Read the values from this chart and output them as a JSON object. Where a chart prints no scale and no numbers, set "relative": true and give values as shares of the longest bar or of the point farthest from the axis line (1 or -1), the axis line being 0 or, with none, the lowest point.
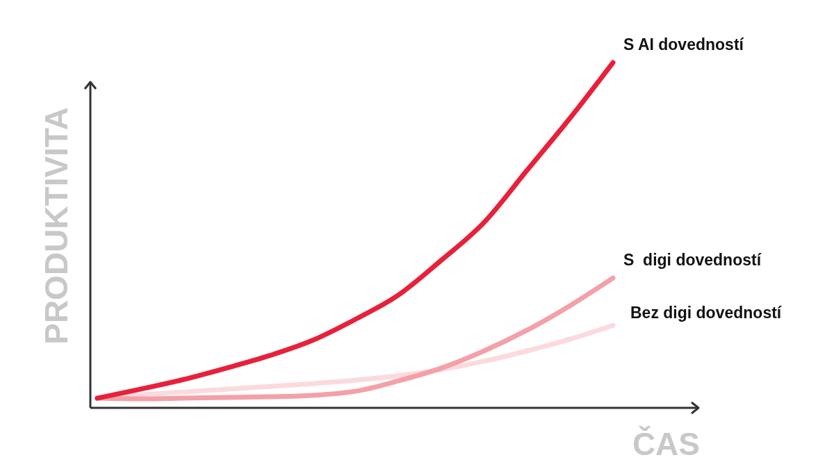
{
  "chart_data": {
    "type": "line",
    "relative": true,
    "xlabel": "ČAS",
    "ylabel": "PRODUKTIVITA",
    "marker": "none",
    "line_style": "solid",
    "categories": [
      null,
      null,
      null,
      null,
      null,
      null,
      null,
      null,
      null,
      null,
      null,
      null,
      null
    ],
    "series": [
      {
        "name": "S AI dovedností",
        "color": "#e8203a",
        "values": [
          0.028,
          0.054,
          0.082,
          0.115,
          0.151,
          0.195,
          0.256,
          0.326,
          0.427,
          0.537,
          0.688,
          0.839,
          1
        ]
      },
      {
        "name": "S  digi dovedností",
        "color": "#f4a0a8",
        "values": [
          0.028,
          0.026,
          0.028,
          0.03,
          0.032,
          0.036,
          0.048,
          0.078,
          0.115,
          0.165,
          0.225,
          0.296,
          0.376
        ]
      },
      {
        "name": "Bez digi dovedností",
        "color": "#fbdadd",
        "values": [
          0.028,
          0.038,
          0.046,
          0.054,
          0.062,
          0.07,
          0.08,
          0.093,
          0.111,
          0.135,
          0.165,
          0.199,
          0.239
        ]
      }
    ]
  }
}
